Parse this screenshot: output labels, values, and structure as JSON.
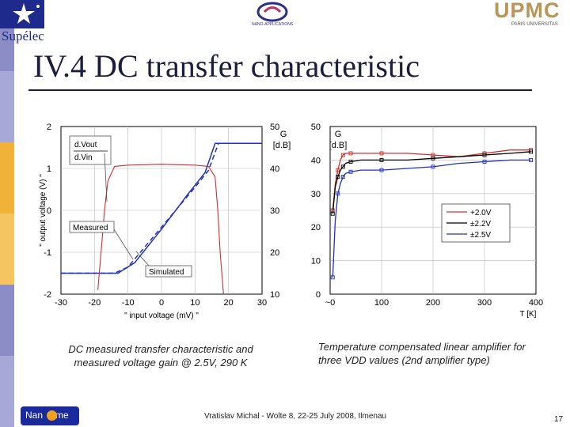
{
  "header": {
    "supelec_label": "Supélec",
    "mid_logo_text": "NANO-APPLICATIONS",
    "upmc_label": "UPMC",
    "upmc_sub": "PARIS UNIVERSITAS"
  },
  "slide": {
    "title": "IV.4 DC transfer characteristic",
    "caption_left": "DC measured transfer characteristic and measured voltage gain @ 2.5V, 290 K",
    "caption_right": "Temperature compensated linear amplifier for three VDD values (2nd amplifier type)",
    "footer": "Vratislav Michal - Wolte 8, 22-25 July 2008, Ilmenau",
    "page_number": "17",
    "nanotime_label": "Nan   time"
  },
  "colors": {
    "title": "#1c1c3c",
    "red_series": "#d03030",
    "blue_series": "#2030c0",
    "black_series": "#000000",
    "sidebar": [
      "#8c8cc6",
      "#a8a8d8",
      "#f1b23a",
      "#f4c560",
      "#8c8cc6",
      "#a8a8d8"
    ]
  },
  "chart_data": [
    {
      "type": "line",
      "xlabel": "\" input voltage (mV) \"",
      "ylabel": "\" output voltage (V) \"",
      "y2label": "G [dB]",
      "xlim": [
        -30,
        30
      ],
      "ylim": [
        -2,
        2
      ],
      "y2lim": [
        10,
        50
      ],
      "x_ticks": [
        "-30",
        "-20",
        "-10",
        "0",
        "10",
        "20",
        "30"
      ],
      "y_ticks": [
        "2",
        "1",
        "0",
        "-1",
        "-2"
      ],
      "y2_ticks": [
        "50",
        "40",
        "30",
        "20",
        "10"
      ],
      "y2_title": [
        "G",
        "[d.B]"
      ],
      "annotations": [
        "d.Vout",
        "d.Vin",
        "Measured",
        "Simulated"
      ],
      "series": [
        {
          "name": "Measured",
          "axis": "left",
          "style": "solid",
          "color": "#2030c0",
          "x": [
            -30,
            -13,
            -8,
            0,
            8,
            13,
            16,
            30
          ],
          "y": [
            -1.5,
            -1.5,
            -1.25,
            -0.45,
            0.4,
            0.9,
            1.6,
            1.6
          ]
        },
        {
          "name": "Simulated",
          "axis": "left",
          "style": "dashed",
          "color": "#2030c0",
          "x": [
            -30,
            -14,
            -10,
            0,
            10,
            14,
            17,
            30
          ],
          "y": [
            -1.5,
            -1.5,
            -1.35,
            -0.4,
            0.55,
            0.95,
            1.6,
            1.6
          ]
        },
        {
          "name": "Gain",
          "axis": "right",
          "style": "solid",
          "color": "#d03030",
          "x": [
            -19,
            -17.5,
            -17,
            -16,
            -14,
            -10,
            0,
            10,
            14,
            16,
            16.8,
            17.5,
            18.5
          ],
          "y": [
            11,
            25,
            30,
            37,
            40.5,
            40.8,
            41,
            40.8,
            40.5,
            38,
            30,
            20,
            10
          ]
        }
      ]
    },
    {
      "type": "line",
      "xlabel": "T [K]",
      "ylabel": "G [d.B]",
      "xlim": [
        0,
        400
      ],
      "ylim": [
        0,
        50
      ],
      "x_ticks": [
        "~0",
        "100",
        "200",
        "300",
        "400"
      ],
      "y_ticks": [
        "50",
        "40",
        "30",
        "20",
        "10",
        "0"
      ],
      "y_title": [
        "G",
        "[d.B]"
      ],
      "legend": "bottom-right",
      "series": [
        {
          "name": "+2.0V",
          "color": "#d03030",
          "x": [
            5,
            10,
            15,
            20,
            25,
            30,
            40,
            60,
            100,
            150,
            200,
            250,
            300,
            350,
            390
          ],
          "y": [
            25,
            33,
            37,
            40,
            41.5,
            42,
            42,
            42,
            42,
            42,
            41.5,
            41,
            42,
            43,
            43
          ]
        },
        {
          "name": "±2.2V",
          "color": "#000000",
          "x": [
            5,
            10,
            15,
            20,
            25,
            30,
            40,
            60,
            100,
            150,
            200,
            250,
            300,
            350,
            390
          ],
          "y": [
            24,
            32,
            35,
            37,
            38,
            39,
            39.5,
            40,
            40,
            40,
            40.5,
            41,
            41.5,
            42,
            42.5
          ]
        },
        {
          "name": "±2.5V",
          "color": "#2030c0",
          "x": [
            5,
            10,
            15,
            20,
            25,
            30,
            40,
            60,
            100,
            150,
            200,
            250,
            300,
            350,
            390
          ],
          "y": [
            5,
            22,
            30,
            33,
            35,
            36,
            36.5,
            37,
            37,
            37.5,
            38,
            39,
            39.5,
            40,
            40
          ]
        }
      ]
    }
  ]
}
